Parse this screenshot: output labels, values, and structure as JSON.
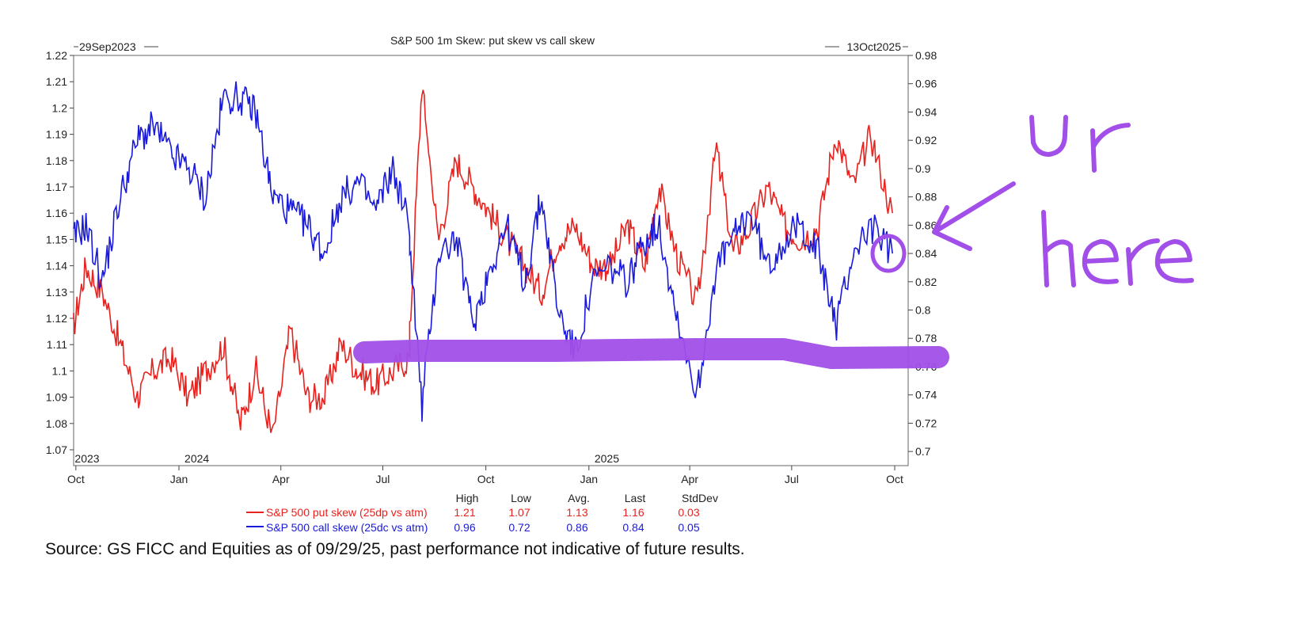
{
  "chart_data": {
    "type": "line",
    "title": "S&P 500 1m Skew: put skew vs call skew",
    "date_start_label": "29Sep2023",
    "date_end_label": "13Oct2025",
    "x_month_labels": [
      "Oct",
      "Jan",
      "Apr",
      "Jul",
      "Oct",
      "Jan",
      "Apr",
      "Jul",
      "Oct"
    ],
    "x_year_labels": [
      "2023",
      "2024",
      "2025"
    ],
    "y_left": {
      "ticks": [
        "1.07",
        "1.08",
        "1.09",
        "1.1",
        "1.11",
        "1.12",
        "1.13",
        "1.14",
        "1.15",
        "1.16",
        "1.17",
        "1.18",
        "1.19",
        "1.2",
        "1.21",
        "1.22"
      ],
      "ylim": [
        1.07,
        1.22
      ]
    },
    "y_right": {
      "ticks": [
        "0.7",
        "0.72",
        "0.74",
        "0.76",
        "0.78",
        "0.8",
        "0.82",
        "0.84",
        "0.86",
        "0.88",
        "0.9",
        "0.92",
        "0.94",
        "0.96",
        "0.98"
      ],
      "ylim": [
        0.69,
        0.98
      ]
    },
    "series": [
      {
        "name": "S&P 500 put skew (25dp vs atm)",
        "axis": "left",
        "color": "#e8221e",
        "x": [
          "2023-09-29",
          "2023-10-10",
          "2023-10-25",
          "2023-11-10",
          "2023-11-25",
          "2023-12-10",
          "2023-12-25",
          "2024-01-10",
          "2024-01-25",
          "2024-02-10",
          "2024-02-25",
          "2024-03-10",
          "2024-03-25",
          "2024-04-10",
          "2024-04-25",
          "2024-05-10",
          "2024-05-25",
          "2024-06-10",
          "2024-06-25",
          "2024-07-10",
          "2024-07-25",
          "2024-08-05",
          "2024-08-20",
          "2024-09-05",
          "2024-09-20",
          "2024-10-05",
          "2024-10-20",
          "2024-11-05",
          "2024-11-20",
          "2024-12-05",
          "2024-12-20",
          "2025-01-05",
          "2025-01-20",
          "2025-02-05",
          "2025-02-20",
          "2025-03-05",
          "2025-03-20",
          "2025-04-08",
          "2025-04-25",
          "2025-05-10",
          "2025-05-25",
          "2025-06-10",
          "2025-06-25",
          "2025-07-10",
          "2025-07-25",
          "2025-08-10",
          "2025-08-25",
          "2025-09-10",
          "2025-09-29"
        ],
        "y": [
          1.115,
          1.14,
          1.13,
          1.11,
          1.09,
          1.1,
          1.105,
          1.09,
          1.1,
          1.11,
          1.08,
          1.1,
          1.075,
          1.115,
          1.09,
          1.09,
          1.11,
          1.1,
          1.095,
          1.1,
          1.105,
          1.21,
          1.15,
          1.18,
          1.17,
          1.16,
          1.15,
          1.14,
          1.13,
          1.15,
          1.155,
          1.14,
          1.14,
          1.155,
          1.14,
          1.17,
          1.145,
          1.125,
          1.185,
          1.145,
          1.155,
          1.17,
          1.155,
          1.15,
          1.155,
          1.19,
          1.17,
          1.19,
          1.16
        ]
      },
      {
        "name": "S&P 500 call skew (25dc vs atm)",
        "axis": "right",
        "color": "#1a1adb",
        "x": [
          "2023-09-29",
          "2023-10-10",
          "2023-10-25",
          "2023-11-10",
          "2023-11-25",
          "2023-12-10",
          "2023-12-25",
          "2024-01-10",
          "2024-01-25",
          "2024-02-10",
          "2024-02-25",
          "2024-03-10",
          "2024-03-25",
          "2024-04-10",
          "2024-04-25",
          "2024-05-10",
          "2024-05-25",
          "2024-06-10",
          "2024-06-25",
          "2024-07-10",
          "2024-07-25",
          "2024-08-05",
          "2024-08-20",
          "2024-09-05",
          "2024-09-20",
          "2024-10-05",
          "2024-10-20",
          "2024-11-05",
          "2024-11-20",
          "2024-12-05",
          "2024-12-20",
          "2025-01-05",
          "2025-01-20",
          "2025-02-05",
          "2025-02-20",
          "2025-03-05",
          "2025-03-20",
          "2025-04-08",
          "2025-04-25",
          "2025-05-10",
          "2025-05-25",
          "2025-06-10",
          "2025-06-25",
          "2025-07-10",
          "2025-07-25",
          "2025-08-10",
          "2025-08-25",
          "2025-09-10",
          "2025-09-29"
        ],
        "y": [
          0.85,
          0.86,
          0.82,
          0.88,
          0.92,
          0.93,
          0.91,
          0.9,
          0.88,
          0.95,
          0.95,
          0.94,
          0.88,
          0.87,
          0.86,
          0.84,
          0.88,
          0.89,
          0.87,
          0.9,
          0.86,
          0.73,
          0.84,
          0.85,
          0.79,
          0.83,
          0.86,
          0.82,
          0.88,
          0.8,
          0.77,
          0.82,
          0.83,
          0.82,
          0.85,
          0.86,
          0.8,
          0.74,
          0.83,
          0.85,
          0.87,
          0.83,
          0.85,
          0.86,
          0.84,
          0.79,
          0.84,
          0.86,
          0.84
        ]
      }
    ],
    "stats": {
      "headers": [
        "High",
        "Low",
        "Avg.",
        "Last",
        "StdDev"
      ],
      "put": [
        "1.21",
        "1.07",
        "1.13",
        "1.16",
        "0.03"
      ],
      "call": [
        "0.96",
        "0.72",
        "0.86",
        "0.84",
        "0.05"
      ]
    },
    "annotation": {
      "text_line1": "ur",
      "text_line2": "here",
      "color": "#a14fe8"
    }
  },
  "source": "Source: GS FICC and Equities as of 09/29/25, past performance not indicative of future results."
}
